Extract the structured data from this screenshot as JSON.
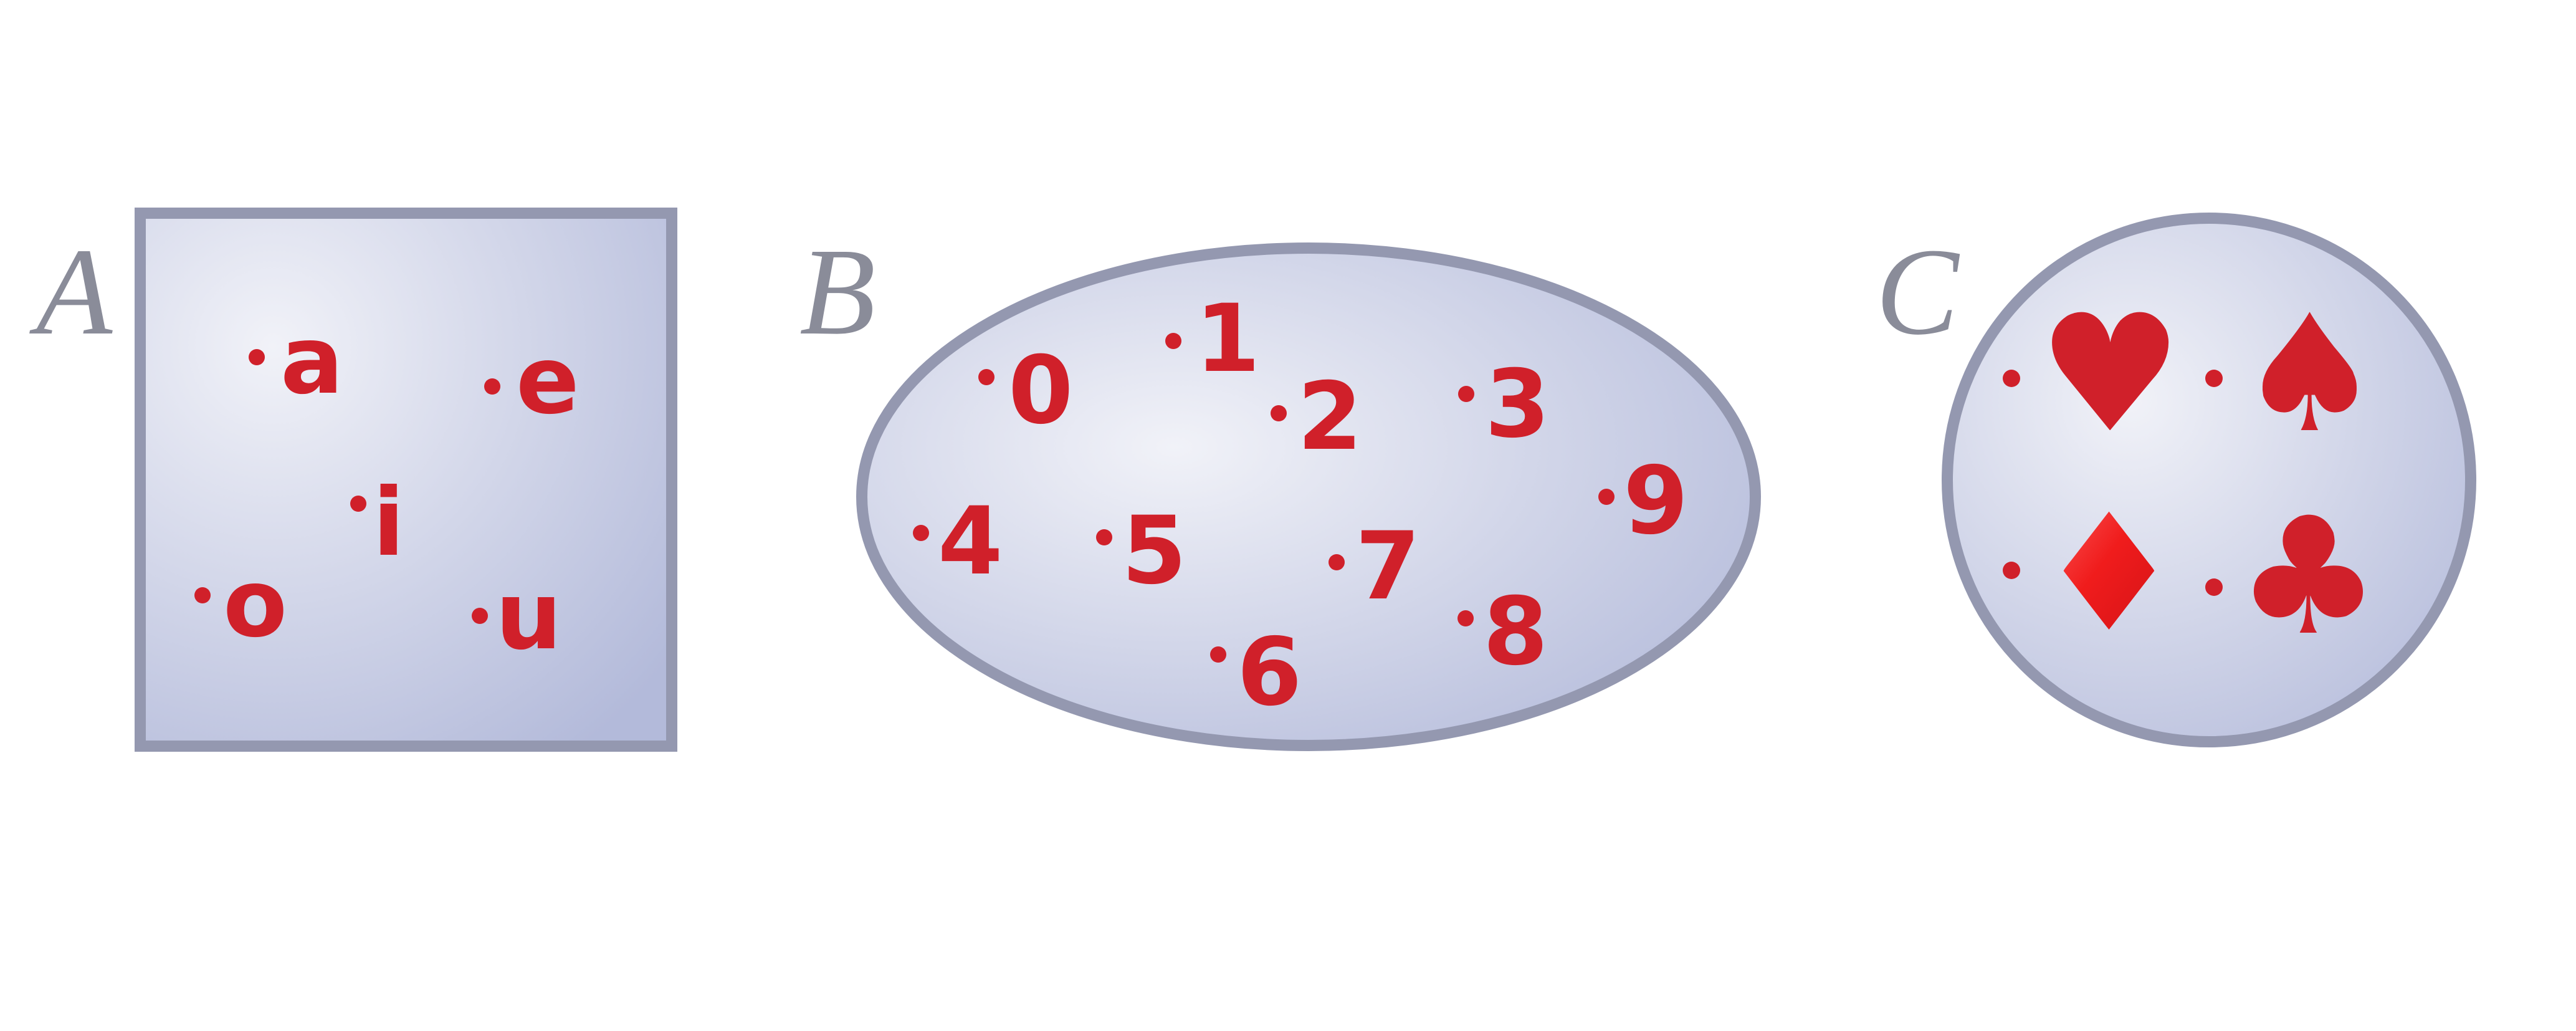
{
  "colors": {
    "outline": "#9498b0",
    "fill_light": "#f1f2f8",
    "fill_dark": "#b3bada",
    "member": "#d0202a",
    "label": "#8a8c99"
  },
  "sets": [
    {
      "name": "A",
      "shape": "square",
      "members": [
        "a",
        "e",
        "i",
        "o",
        "u"
      ]
    },
    {
      "name": "B",
      "shape": "ellipse",
      "members": [
        "0",
        "1",
        "2",
        "3",
        "4",
        "5",
        "6",
        "7",
        "8",
        "9"
      ]
    },
    {
      "name": "C",
      "shape": "circle",
      "members": [
        "♥",
        "♠",
        "♦",
        "♣"
      ],
      "member_icons": [
        "heart-suit-icon",
        "spade-suit-icon",
        "diamond-suit-icon",
        "club-suit-icon"
      ]
    }
  ]
}
